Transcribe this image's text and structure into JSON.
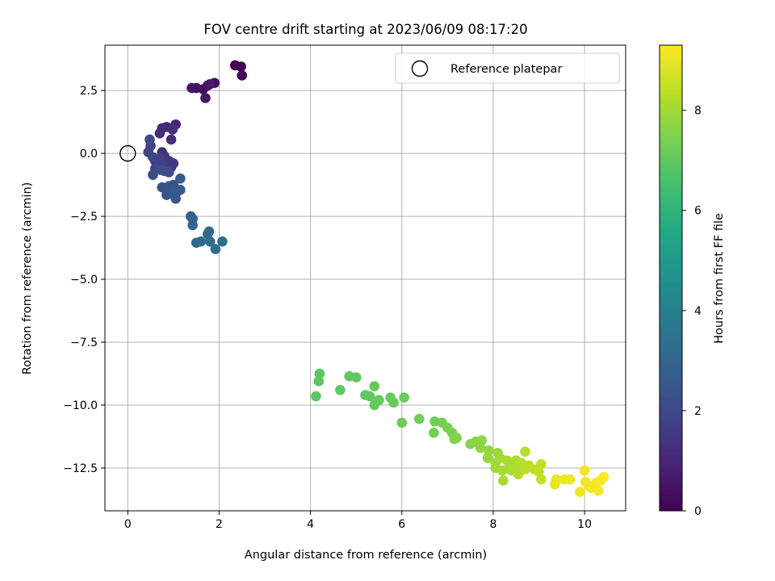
{
  "chart_data": {
    "type": "scatter",
    "title": "FOV centre drift starting at 2023/06/09 08:17:20",
    "xlabel": "Angular distance from reference (arcmin)",
    "ylabel": "Rotation from reference (arcmin)",
    "xlim": [
      -0.5,
      10.9
    ],
    "ylim": [
      -14.2,
      4.3
    ],
    "x_ticks": [
      0,
      2,
      4,
      6,
      8,
      10
    ],
    "x_tick_labels": [
      "0",
      "2",
      "4",
      "6",
      "8",
      "10"
    ],
    "y_ticks": [
      2.5,
      0.0,
      -2.5,
      -5.0,
      -7.5,
      -10.0,
      -12.5
    ],
    "y_tick_labels": [
      "2.5",
      "0.0",
      "−2.5",
      "−5.0",
      "−7.5",
      "−10.0",
      "−12.5"
    ],
    "grid": true,
    "legend": {
      "placement": "top-right",
      "entries": [
        "Reference platepar"
      ]
    },
    "reference_point": {
      "x": 0,
      "y": 0
    },
    "colorbar": {
      "label": "Hours from first FF file",
      "colormap": "viridis",
      "range": [
        0,
        9.3
      ],
      "ticks": [
        0,
        2,
        4,
        6,
        8
      ],
      "tick_labels": [
        "0",
        "2",
        "4",
        "6",
        "8"
      ]
    },
    "points": [
      {
        "x": 2.35,
        "y": 3.5,
        "h": 0.0
      },
      {
        "x": 2.48,
        "y": 3.45,
        "h": 0.05
      },
      {
        "x": 2.5,
        "y": 3.1,
        "h": 0.1
      },
      {
        "x": 1.75,
        "y": 2.7,
        "h": 0.3
      },
      {
        "x": 1.9,
        "y": 2.8,
        "h": 0.35
      },
      {
        "x": 1.65,
        "y": 2.55,
        "h": 0.4
      },
      {
        "x": 1.5,
        "y": 2.6,
        "h": 0.45
      },
      {
        "x": 1.4,
        "y": 2.6,
        "h": 0.5
      },
      {
        "x": 1.7,
        "y": 2.2,
        "h": 0.55
      },
      {
        "x": 1.8,
        "y": 2.75,
        "h": 0.6
      },
      {
        "x": 1.05,
        "y": 1.15,
        "h": 1.0
      },
      {
        "x": 0.85,
        "y": 1.05,
        "h": 1.05
      },
      {
        "x": 0.75,
        "y": 1.0,
        "h": 1.1
      },
      {
        "x": 0.7,
        "y": 0.8,
        "h": 1.15
      },
      {
        "x": 0.95,
        "y": 0.55,
        "h": 1.2
      },
      {
        "x": 0.98,
        "y": 0.95,
        "h": 1.25
      },
      {
        "x": 0.75,
        "y": 0.05,
        "h": 1.3
      },
      {
        "x": 0.6,
        "y": -0.3,
        "h": 1.35
      },
      {
        "x": 0.8,
        "y": -0.1,
        "h": 1.4
      },
      {
        "x": 0.9,
        "y": -0.3,
        "h": 1.45
      },
      {
        "x": 1.0,
        "y": -0.4,
        "h": 1.5
      },
      {
        "x": 0.95,
        "y": -0.55,
        "h": 1.55
      },
      {
        "x": 0.85,
        "y": -0.6,
        "h": 1.6
      },
      {
        "x": 0.75,
        "y": -0.45,
        "h": 1.65
      },
      {
        "x": 0.65,
        "y": -0.5,
        "h": 1.7
      },
      {
        "x": 0.7,
        "y": -0.2,
        "h": 1.75
      },
      {
        "x": 0.5,
        "y": 0.3,
        "h": 1.8
      },
      {
        "x": 0.45,
        "y": 0.05,
        "h": 1.85
      },
      {
        "x": 0.55,
        "y": -0.15,
        "h": 1.9
      },
      {
        "x": 0.6,
        "y": -0.6,
        "h": 1.95
      },
      {
        "x": 0.55,
        "y": -0.85,
        "h": 2.0
      },
      {
        "x": 0.48,
        "y": 0.55,
        "h": 2.05
      },
      {
        "x": 0.72,
        "y": -0.65,
        "h": 2.1
      },
      {
        "x": 0.8,
        "y": -0.7,
        "h": 2.15
      },
      {
        "x": 0.9,
        "y": -0.75,
        "h": 2.2
      },
      {
        "x": 0.75,
        "y": -1.35,
        "h": 2.3
      },
      {
        "x": 0.85,
        "y": -1.65,
        "h": 2.35
      },
      {
        "x": 0.9,
        "y": -1.3,
        "h": 2.4
      },
      {
        "x": 1.0,
        "y": -1.25,
        "h": 2.45
      },
      {
        "x": 1.1,
        "y": -1.5,
        "h": 2.5
      },
      {
        "x": 1.05,
        "y": -1.8,
        "h": 2.55
      },
      {
        "x": 1.0,
        "y": -1.55,
        "h": 2.6
      },
      {
        "x": 1.15,
        "y": -1.45,
        "h": 2.65
      },
      {
        "x": 1.15,
        "y": -1.0,
        "h": 2.7
      },
      {
        "x": 1.38,
        "y": -2.5,
        "h": 2.9
      },
      {
        "x": 1.42,
        "y": -2.6,
        "h": 2.95
      },
      {
        "x": 1.42,
        "y": -2.85,
        "h": 3.0
      },
      {
        "x": 1.5,
        "y": -3.55,
        "h": 3.1
      },
      {
        "x": 1.6,
        "y": -3.5,
        "h": 3.15
      },
      {
        "x": 1.75,
        "y": -3.2,
        "h": 3.2
      },
      {
        "x": 1.78,
        "y": -3.1,
        "h": 3.25
      },
      {
        "x": 1.8,
        "y": -3.5,
        "h": 3.3
      },
      {
        "x": 1.92,
        "y": -3.8,
        "h": 3.35
      },
      {
        "x": 2.07,
        "y": -3.5,
        "h": 3.4
      },
      {
        "x": 4.2,
        "y": -8.75,
        "h": 6.9
      },
      {
        "x": 4.18,
        "y": -9.05,
        "h": 6.92
      },
      {
        "x": 4.12,
        "y": -9.65,
        "h": 6.94
      },
      {
        "x": 4.65,
        "y": -9.4,
        "h": 6.96
      },
      {
        "x": 4.85,
        "y": -8.85,
        "h": 6.98
      },
      {
        "x": 5.0,
        "y": -8.9,
        "h": 7.0
      },
      {
        "x": 5.2,
        "y": -9.6,
        "h": 7.02
      },
      {
        "x": 5.3,
        "y": -9.65,
        "h": 7.04
      },
      {
        "x": 5.4,
        "y": -9.25,
        "h": 7.06
      },
      {
        "x": 5.4,
        "y": -10.0,
        "h": 7.08
      },
      {
        "x": 5.5,
        "y": -9.8,
        "h": 7.1
      },
      {
        "x": 5.75,
        "y": -9.7,
        "h": 7.12
      },
      {
        "x": 5.82,
        "y": -9.9,
        "h": 7.14
      },
      {
        "x": 6.05,
        "y": -9.7,
        "h": 7.16
      },
      {
        "x": 6.0,
        "y": -10.7,
        "h": 7.2
      },
      {
        "x": 6.38,
        "y": -10.55,
        "h": 7.25
      },
      {
        "x": 6.72,
        "y": -10.65,
        "h": 7.3
      },
      {
        "x": 6.7,
        "y": -11.1,
        "h": 7.32
      },
      {
        "x": 6.88,
        "y": -10.7,
        "h": 7.35
      },
      {
        "x": 7.0,
        "y": -10.9,
        "h": 7.4
      },
      {
        "x": 7.1,
        "y": -11.1,
        "h": 7.45
      },
      {
        "x": 7.2,
        "y": -11.3,
        "h": 7.5
      },
      {
        "x": 7.15,
        "y": -11.35,
        "h": 7.52
      },
      {
        "x": 7.5,
        "y": -11.55,
        "h": 7.6
      },
      {
        "x": 7.62,
        "y": -11.45,
        "h": 7.65
      },
      {
        "x": 7.75,
        "y": -11.4,
        "h": 7.7
      },
      {
        "x": 7.72,
        "y": -11.7,
        "h": 7.72
      },
      {
        "x": 7.9,
        "y": -11.8,
        "h": 7.8
      },
      {
        "x": 7.88,
        "y": -12.1,
        "h": 7.85
      },
      {
        "x": 8.1,
        "y": -11.9,
        "h": 7.9
      },
      {
        "x": 8.05,
        "y": -12.3,
        "h": 7.95
      },
      {
        "x": 8.15,
        "y": -12.1,
        "h": 8.0
      },
      {
        "x": 8.05,
        "y": -12.5,
        "h": 8.02
      },
      {
        "x": 8.2,
        "y": -12.6,
        "h": 8.05
      },
      {
        "x": 8.22,
        "y": -13.0,
        "h": 8.08
      },
      {
        "x": 8.3,
        "y": -12.2,
        "h": 8.1
      },
      {
        "x": 8.35,
        "y": -12.45,
        "h": 8.12
      },
      {
        "x": 8.4,
        "y": -12.6,
        "h": 8.15
      },
      {
        "x": 8.5,
        "y": -12.2,
        "h": 8.18
      },
      {
        "x": 8.55,
        "y": -12.45,
        "h": 8.2
      },
      {
        "x": 8.55,
        "y": -12.75,
        "h": 8.22
      },
      {
        "x": 8.62,
        "y": -12.3,
        "h": 8.25
      },
      {
        "x": 8.7,
        "y": -11.85,
        "h": 8.28
      },
      {
        "x": 8.7,
        "y": -12.55,
        "h": 8.3
      },
      {
        "x": 8.78,
        "y": -12.4,
        "h": 8.32
      },
      {
        "x": 8.9,
        "y": -12.55,
        "h": 8.35
      },
      {
        "x": 9.0,
        "y": -12.65,
        "h": 8.4
      },
      {
        "x": 9.05,
        "y": -12.35,
        "h": 8.42
      },
      {
        "x": 9.05,
        "y": -12.95,
        "h": 8.45
      },
      {
        "x": 9.35,
        "y": -13.15,
        "h": 9.0
      },
      {
        "x": 9.38,
        "y": -12.95,
        "h": 9.02
      },
      {
        "x": 9.55,
        "y": -12.95,
        "h": 9.05
      },
      {
        "x": 9.68,
        "y": -12.95,
        "h": 9.07
      },
      {
        "x": 9.9,
        "y": -13.45,
        "h": 9.1
      },
      {
        "x": 10.0,
        "y": -12.6,
        "h": 9.12
      },
      {
        "x": 10.02,
        "y": -13.05,
        "h": 9.14
      },
      {
        "x": 10.08,
        "y": -13.2,
        "h": 9.16
      },
      {
        "x": 10.15,
        "y": -13.3,
        "h": 9.18
      },
      {
        "x": 10.25,
        "y": -13.1,
        "h": 9.2
      },
      {
        "x": 10.3,
        "y": -13.4,
        "h": 9.22
      },
      {
        "x": 10.35,
        "y": -13.0,
        "h": 9.25
      },
      {
        "x": 10.42,
        "y": -12.85,
        "h": 9.28
      }
    ]
  }
}
